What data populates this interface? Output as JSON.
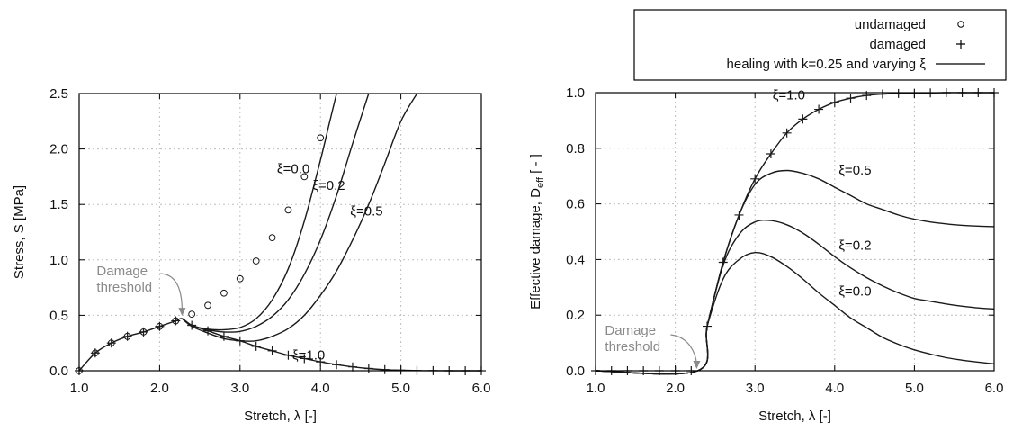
{
  "legend": {
    "items": [
      {
        "label": "undamaged",
        "marker": "circle"
      },
      {
        "label": "damaged",
        "marker": "plus"
      },
      {
        "label": "healing with k=0.25 and varying ξ",
        "marker": "line"
      }
    ]
  },
  "chart_data": [
    {
      "type": "line",
      "title": "",
      "xlabel": "Stretch, λ [-]",
      "ylabel": "Stress, S [MPa]",
      "xlim": [
        1.0,
        6.0
      ],
      "ylim": [
        0.0,
        2.5
      ],
      "xticks": [
        "1.0",
        "2.0",
        "3.0",
        "4.0",
        "5.0",
        "6.0"
      ],
      "yticks": [
        "0.0",
        "0.5",
        "1.0",
        "1.5",
        "2.0",
        "2.5"
      ],
      "grid": true,
      "annotation": {
        "text_line1": "Damage",
        "text_line2": "threshold",
        "x": 2.28,
        "y": 0.47
      },
      "series": [
        {
          "name": "ξ=0.0",
          "style": "line",
          "x": [
            1.0,
            1.2,
            1.4,
            1.6,
            1.8,
            2.0,
            2.2,
            2.28,
            2.4,
            2.6,
            2.8,
            3.0,
            3.2,
            3.4,
            3.6,
            3.8,
            4.0,
            4.1,
            4.2
          ],
          "y": [
            0.0,
            0.16,
            0.25,
            0.31,
            0.35,
            0.4,
            0.45,
            0.47,
            0.41,
            0.375,
            0.37,
            0.39,
            0.47,
            0.64,
            0.92,
            1.35,
            1.9,
            2.2,
            2.5
          ]
        },
        {
          "name": "ξ=0.2",
          "style": "line",
          "x": [
            2.28,
            2.4,
            2.6,
            2.8,
            3.0,
            3.2,
            3.4,
            3.6,
            3.8,
            4.0,
            4.2,
            4.4,
            4.6
          ],
          "y": [
            0.47,
            0.41,
            0.37,
            0.35,
            0.355,
            0.4,
            0.49,
            0.64,
            0.87,
            1.18,
            1.58,
            2.05,
            2.5
          ]
        },
        {
          "name": "ξ=0.5",
          "style": "line",
          "x": [
            2.28,
            2.4,
            2.6,
            2.8,
            3.0,
            3.2,
            3.4,
            3.6,
            3.8,
            4.0,
            4.2,
            4.4,
            4.6,
            4.8,
            5.0,
            5.2
          ],
          "y": [
            0.47,
            0.4,
            0.34,
            0.29,
            0.27,
            0.27,
            0.31,
            0.38,
            0.5,
            0.68,
            0.9,
            1.18,
            1.5,
            1.87,
            2.25,
            2.5
          ]
        },
        {
          "name": "ξ=1.0",
          "style": "line",
          "x": [
            2.28,
            2.4,
            2.6,
            2.8,
            3.0,
            3.2,
            3.4,
            3.6,
            3.8,
            4.0,
            4.2,
            4.4,
            4.6,
            4.8,
            5.0,
            5.2,
            5.4,
            5.6,
            5.8,
            6.0
          ],
          "y": [
            0.47,
            0.41,
            0.36,
            0.31,
            0.27,
            0.22,
            0.18,
            0.14,
            0.11,
            0.08,
            0.055,
            0.035,
            0.02,
            0.01,
            0.005,
            0.002,
            0.001,
            0.0,
            0.0,
            0.0
          ]
        },
        {
          "name": "undamaged",
          "style": "circle",
          "x": [
            1.0,
            1.2,
            1.4,
            1.6,
            1.8,
            2.0,
            2.2,
            2.4,
            2.6,
            2.8,
            3.0,
            3.2,
            3.4,
            3.6,
            3.8,
            4.0
          ],
          "y": [
            0.0,
            0.16,
            0.25,
            0.31,
            0.35,
            0.4,
            0.45,
            0.51,
            0.59,
            0.7,
            0.83,
            0.99,
            1.2,
            1.45,
            1.75,
            2.1
          ]
        },
        {
          "name": "damaged",
          "style": "plus",
          "x": [
            1.0,
            1.2,
            1.4,
            1.6,
            1.8,
            2.0,
            2.2,
            2.4,
            2.6,
            2.8,
            3.0,
            3.2,
            3.4,
            3.6,
            3.8,
            4.0,
            4.2,
            4.4,
            4.6,
            4.8,
            5.0,
            5.2,
            5.4,
            5.6,
            5.8,
            6.0
          ],
          "y": [
            0.0,
            0.16,
            0.25,
            0.31,
            0.35,
            0.4,
            0.45,
            0.41,
            0.36,
            0.31,
            0.27,
            0.22,
            0.18,
            0.14,
            0.11,
            0.08,
            0.055,
            0.035,
            0.02,
            0.01,
            0.005,
            0.002,
            0.001,
            0.0,
            0.0,
            0.0
          ]
        }
      ],
      "curve_labels": [
        {
          "text": "ξ=0.0",
          "x": 3.46,
          "y": 1.78
        },
        {
          "text": "ξ=0.2",
          "x": 3.9,
          "y": 1.63
        },
        {
          "text": "ξ=0.5",
          "x": 4.37,
          "y": 1.4
        },
        {
          "text": "ξ=1.0",
          "x": 3.65,
          "y": 0.1
        }
      ]
    },
    {
      "type": "line",
      "title": "",
      "xlabel": "Stretch, λ [-]",
      "ylabel": "Effective damage, D_eff [ - ]",
      "ylabel_main": "Effective damage, D",
      "ylabel_sub": "eff",
      "ylabel_end": " [ - ]",
      "xlim": [
        1.0,
        6.0
      ],
      "ylim": [
        0.0,
        1.0
      ],
      "xticks": [
        "1.0",
        "2.0",
        "3.0",
        "4.0",
        "5.0",
        "6.0"
      ],
      "yticks": [
        "0.0",
        "0.2",
        "0.4",
        "0.6",
        "0.8",
        "1.0"
      ],
      "grid": true,
      "annotation": {
        "text_line1": "Damage",
        "text_line2": "threshold",
        "x": 2.28,
        "y": 0.0
      },
      "series": [
        {
          "name": "ξ=0.0",
          "style": "line",
          "x": [
            1.0,
            2.28,
            2.4,
            2.6,
            2.8,
            3.0,
            3.2,
            3.4,
            3.6,
            3.8,
            4.0,
            4.2,
            4.4,
            4.6,
            4.8,
            5.0,
            5.2,
            5.4,
            5.6,
            5.8,
            6.0
          ],
          "y": [
            0.0,
            0.0,
            0.16,
            0.33,
            0.4,
            0.425,
            0.41,
            0.375,
            0.33,
            0.28,
            0.235,
            0.19,
            0.155,
            0.12,
            0.095,
            0.075,
            0.06,
            0.047,
            0.038,
            0.031,
            0.025
          ]
        },
        {
          "name": "ξ=0.2",
          "style": "line",
          "x": [
            1.0,
            2.28,
            2.4,
            2.6,
            2.8,
            3.0,
            3.2,
            3.4,
            3.6,
            3.8,
            4.0,
            4.2,
            4.4,
            4.6,
            4.8,
            5.0,
            5.2,
            5.4,
            5.6,
            5.8,
            6.0
          ],
          "y": [
            0.0,
            0.0,
            0.16,
            0.38,
            0.49,
            0.535,
            0.54,
            0.525,
            0.495,
            0.455,
            0.41,
            0.37,
            0.335,
            0.305,
            0.28,
            0.26,
            0.25,
            0.24,
            0.232,
            0.226,
            0.222
          ]
        },
        {
          "name": "ξ=0.5",
          "style": "line",
          "x": [
            1.0,
            2.28,
            2.4,
            2.6,
            2.8,
            3.0,
            3.2,
            3.4,
            3.6,
            3.8,
            4.0,
            4.2,
            4.4,
            4.6,
            4.8,
            5.0,
            5.2,
            5.4,
            5.6,
            5.8,
            6.0
          ],
          "y": [
            0.0,
            0.0,
            0.16,
            0.39,
            0.56,
            0.67,
            0.71,
            0.72,
            0.71,
            0.69,
            0.66,
            0.63,
            0.6,
            0.58,
            0.56,
            0.545,
            0.535,
            0.528,
            0.523,
            0.52,
            0.518
          ]
        },
        {
          "name": "ξ=1.0",
          "style": "line",
          "x": [
            1.0,
            2.28,
            2.4,
            2.6,
            2.8,
            3.0,
            3.2,
            3.4,
            3.6,
            3.8,
            4.0,
            4.2,
            4.4,
            4.6,
            4.8,
            5.0,
            5.2,
            5.4,
            5.6,
            5.8,
            6.0
          ],
          "y": [
            0.0,
            0.0,
            0.16,
            0.39,
            0.56,
            0.69,
            0.78,
            0.855,
            0.905,
            0.94,
            0.965,
            0.98,
            0.99,
            0.995,
            0.997,
            0.998,
            0.999,
            1.0,
            1.0,
            1.0,
            1.0
          ]
        },
        {
          "name": "damaged",
          "style": "plus",
          "x": [
            1.0,
            1.2,
            1.4,
            1.6,
            1.8,
            2.0,
            2.2,
            2.4,
            2.6,
            2.8,
            3.0,
            3.2,
            3.4,
            3.6,
            3.8,
            4.0,
            4.2,
            4.4,
            4.6,
            4.8,
            5.0,
            5.2,
            5.4,
            5.6,
            5.8,
            6.0
          ],
          "y": [
            0.0,
            0.0,
            0.0,
            0.0,
            0.0,
            0.0,
            0.0,
            0.16,
            0.39,
            0.56,
            0.69,
            0.78,
            0.855,
            0.905,
            0.94,
            0.965,
            0.98,
            0.99,
            0.995,
            0.997,
            0.998,
            0.999,
            1.0,
            1.0,
            1.0,
            1.0
          ]
        }
      ],
      "curve_labels": [
        {
          "text": "ξ=1.0",
          "x": 3.22,
          "y": 0.975
        },
        {
          "text": "ξ=0.5",
          "x": 4.05,
          "y": 0.705
        },
        {
          "text": "ξ=0.2",
          "x": 4.05,
          "y": 0.435
        },
        {
          "text": "ξ=0.0",
          "x": 4.05,
          "y": 0.27
        }
      ]
    }
  ]
}
